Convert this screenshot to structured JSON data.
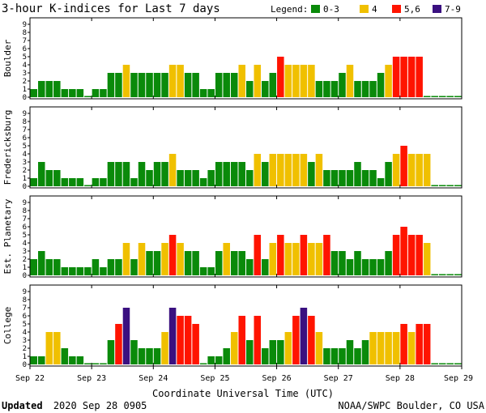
{
  "title": "3-hour K-indices for Last 7 days",
  "legend": {
    "label": "Legend:",
    "items": [
      {
        "label": "0-3",
        "color": "#0a8a0a"
      },
      {
        "label": "4",
        "color": "#f0c000"
      },
      {
        "label": "5,6",
        "color": "#ff1400"
      },
      {
        "label": "7-9",
        "color": "#3a1080"
      }
    ]
  },
  "xlabel": "Coordinate Universal Time (UTC)",
  "footer": {
    "updated_label": "Updated",
    "updated_value": "2020 Sep 28 0905",
    "credit": "NOAA/SWPC Boulder, CO USA"
  },
  "chart_data": {
    "type": "bar",
    "x_ticks": [
      "Sep 22",
      "Sep 23",
      "Sep 24",
      "Sep 25",
      "Sep 26",
      "Sep 27",
      "Sep 28",
      "Sep 29"
    ],
    "ylim": [
      0,
      9
    ],
    "y_ticks": [
      0,
      1,
      2,
      3,
      4,
      5,
      6,
      7,
      8,
      9
    ],
    "intervals_per_day": 8,
    "grid": false,
    "legend_position": "top-right",
    "series": [
      {
        "name": "Boulder",
        "values": [
          1,
          2,
          2,
          2,
          1,
          1,
          1,
          0,
          1,
          1,
          3,
          3,
          4,
          3,
          3,
          3,
          3,
          3,
          4,
          4,
          3,
          3,
          1,
          1,
          3,
          3,
          3,
          4,
          2,
          4,
          2,
          3,
          5,
          4,
          4,
          4,
          4,
          2,
          2,
          2,
          3,
          4,
          2,
          2,
          2,
          3,
          4,
          5,
          5,
          5,
          5,
          0,
          0,
          0,
          0,
          0
        ]
      },
      {
        "name": "Fredericksburg",
        "values": [
          1,
          3,
          2,
          2,
          1,
          1,
          1,
          0,
          1,
          1,
          3,
          3,
          3,
          1,
          3,
          2,
          3,
          3,
          4,
          2,
          2,
          2,
          1,
          2,
          3,
          3,
          3,
          3,
          2,
          4,
          3,
          4,
          4,
          4,
          4,
          4,
          3,
          4,
          2,
          2,
          2,
          2,
          3,
          2,
          2,
          1,
          3,
          4,
          5,
          4,
          4,
          4,
          0,
          0,
          0,
          0
        ]
      },
      {
        "name": "Est. Planetary",
        "values": [
          2,
          3,
          2,
          2,
          1,
          1,
          1,
          1,
          2,
          1,
          2,
          2,
          4,
          2,
          4,
          3,
          3,
          4,
          5,
          4,
          3,
          3,
          1,
          1,
          3,
          4,
          3,
          3,
          2,
          5,
          2,
          4,
          5,
          4,
          4,
          5,
          4,
          4,
          5,
          3,
          3,
          2,
          3,
          2,
          2,
          2,
          3,
          5,
          6,
          5,
          5,
          4,
          0,
          0,
          0,
          0
        ]
      },
      {
        "name": "College",
        "values": [
          1,
          1,
          4,
          4,
          2,
          1,
          1,
          0,
          0,
          0,
          3,
          5,
          7,
          3,
          2,
          2,
          2,
          4,
          7,
          6,
          6,
          5,
          0,
          1,
          1,
          2,
          4,
          6,
          3,
          6,
          2,
          3,
          3,
          4,
          6,
          7,
          6,
          4,
          2,
          2,
          2,
          3,
          2,
          3,
          4,
          4,
          4,
          4,
          5,
          4,
          5,
          5,
          0,
          0,
          0,
          0
        ]
      }
    ]
  }
}
